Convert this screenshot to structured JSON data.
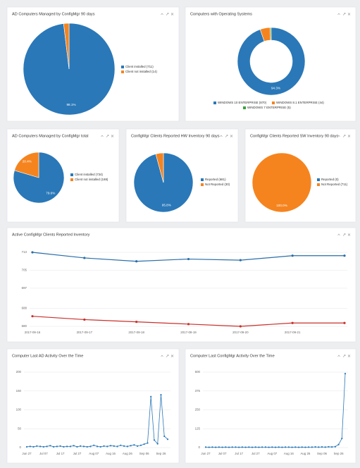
{
  "chart_data": [
    {
      "type": "pie",
      "title": "AD Computers Managed by ConfigMgr 90 days",
      "categories": [
        "Client installed (711)",
        "Client not installed (14)"
      ],
      "values": [
        98.1,
        1.9
      ],
      "value_labels": [
        "98.1%",
        null
      ],
      "colors": [
        "#2a78b8",
        "#f5841f"
      ]
    },
    {
      "type": "donut",
      "title": "Computers with Operating Systems",
      "categories": [
        "WINDOWS 10 ENTERPRISE (870)",
        "WINDOWS 8.1 ENTERPRISE (44)",
        "WINDOWS 7 ENTERPRISE (5)"
      ],
      "values": [
        94.3,
        4.8,
        0.5
      ],
      "value_labels": [
        "94.3%",
        null,
        null
      ],
      "colors": [
        "#2a78b8",
        "#f5841f",
        "#3aa23a"
      ]
    },
    {
      "type": "pie",
      "title": "AD Computers Managed by ConfigMgr total",
      "categories": [
        "Client installed (734)",
        "Client not installed (188)"
      ],
      "values": [
        79.6,
        20.4
      ],
      "value_labels": [
        "79.6%",
        "20.4%"
      ],
      "colors": [
        "#2a78b8",
        "#f5841f"
      ]
    },
    {
      "type": "pie",
      "title": "ConfigMgr Clients Reported HW Inventory 90 days",
      "categories": [
        "Reported (681)",
        "Not Reported (30)"
      ],
      "values": [
        95.8,
        4.2
      ],
      "value_labels": [
        "95.8%",
        null
      ],
      "colors": [
        "#2a78b8",
        "#f5841f"
      ]
    },
    {
      "type": "pie",
      "title": "ConfigMgr Clients Reported SW Inventory 90 days",
      "categories": [
        "Reported (0)",
        "Not Reported (711)"
      ],
      "values": [
        0,
        100
      ],
      "value_labels": [
        null,
        "100.0%"
      ],
      "colors": [
        "#2a78b8",
        "#f5841f"
      ]
    },
    {
      "type": "line",
      "title": "Active ConfigMgr Clients Reported Inventory",
      "categories": [
        "2017-09-16",
        "2017-09-17",
        "2017-09-18",
        "2017-09-19",
        "2017-09-20",
        "2017-09-21",
        null
      ],
      "series": [
        {
          "color": "#2a6ea8",
          "values": [
            713,
            710.5,
            709,
            710,
            709.5,
            711.5,
            711.5
          ]
        },
        {
          "color": "#c9302c",
          "values": [
            684.5,
            683,
            682,
            681,
            680,
            681.5,
            681.5
          ]
        }
      ],
      "ylim": [
        680,
        713
      ],
      "yticks": [
        680,
        688,
        697,
        705,
        713
      ],
      "grid": true
    },
    {
      "type": "line",
      "title": "Computer Last AD Activity Over the Time",
      "categories": [
        "Jun 27",
        null,
        null,
        null,
        null,
        "Jul 07",
        null,
        null,
        null,
        null,
        "Jul 17",
        null,
        null,
        null,
        null,
        "Jul 27",
        null,
        null,
        null,
        null,
        "Aug 07",
        null,
        null,
        null,
        null,
        "Aug 16",
        null,
        null,
        null,
        null,
        "Aug 26",
        null,
        null,
        null,
        null,
        "Sep 06",
        null,
        null,
        null,
        null,
        "Sep 26",
        null,
        null
      ],
      "series": [
        {
          "color": "#2a78b8",
          "values": [
            2,
            3,
            2,
            4,
            3,
            2,
            3,
            5,
            2,
            3,
            4,
            2,
            3,
            3,
            5,
            2,
            4,
            3,
            2,
            3,
            6,
            3,
            2,
            4,
            3,
            5,
            4,
            3,
            6,
            4,
            3,
            5,
            7,
            4,
            6,
            9,
            12,
            135,
            20,
            10,
            140,
            30,
            22
          ]
        }
      ],
      "ylim": [
        0,
        200
      ],
      "yticks": [
        0,
        50,
        100,
        150,
        200
      ],
      "grid": true
    },
    {
      "type": "line",
      "title": "Computer Last ConfigMgr Activity Over the Time",
      "categories": [
        "Jun 27",
        null,
        null,
        null,
        null,
        "Jul 07",
        null,
        null,
        null,
        null,
        "Jul 17",
        null,
        null,
        null,
        null,
        "Jul 27",
        null,
        null,
        null,
        null,
        "Aug 07",
        null,
        null,
        null,
        null,
        "Aug 16",
        null,
        null,
        null,
        null,
        "Aug 26",
        null,
        null,
        null,
        null,
        "Sep 06",
        null,
        null,
        null,
        null,
        "Sep 26",
        null,
        null
      ],
      "series": [
        {
          "color": "#2a78b8",
          "values": [
            3,
            2,
            3,
            2,
            3,
            2,
            3,
            2,
            3,
            3,
            2,
            3,
            2,
            3,
            2,
            3,
            2,
            3,
            3,
            2,
            3,
            2,
            3,
            2,
            3,
            3,
            2,
            3,
            2,
            3,
            2,
            3,
            3,
            4,
            3,
            4,
            3,
            5,
            4,
            6,
            20,
            60,
            490
          ]
        }
      ],
      "ylim": [
        0,
        500
      ],
      "yticks": [
        0,
        125,
        250,
        375,
        500
      ],
      "grid": true
    }
  ]
}
